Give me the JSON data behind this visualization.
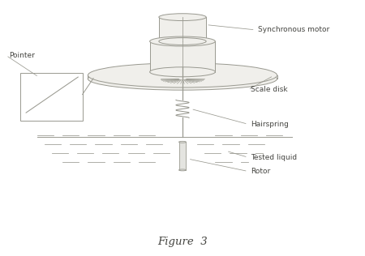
{
  "title": "Figure  3",
  "labels": {
    "synchronous_motor": "Synchronous motor",
    "pointer": "Pointer",
    "scale_disk": "Scale disk",
    "hairspring": "Hairspring",
    "tested_liquid": "Tested liquid",
    "rotor": "Rotor"
  },
  "bg_color": "#ffffff",
  "line_color": "#999990",
  "text_color": "#444440",
  "fill_color": "#f0efeb",
  "figsize": [
    4.5,
    3.16
  ],
  "dpi": 100
}
